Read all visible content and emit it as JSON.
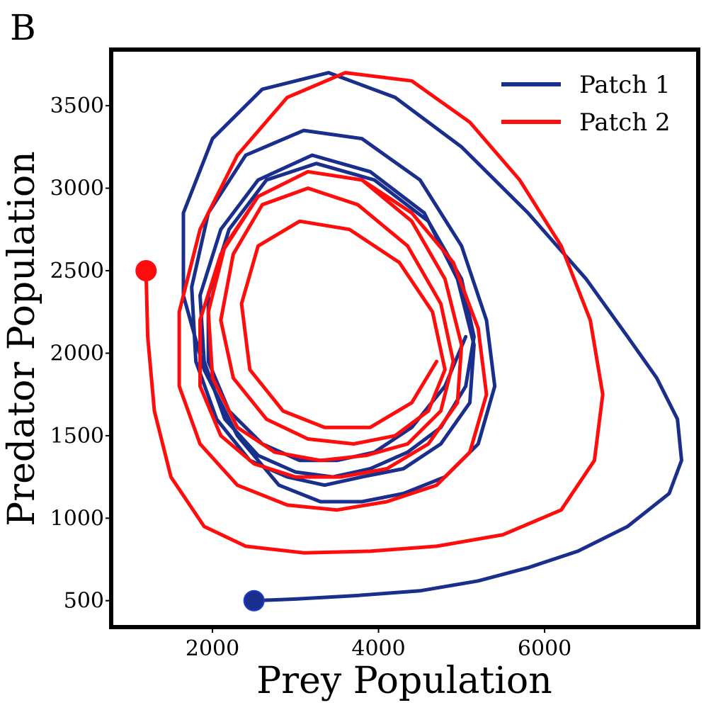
{
  "panel_label": "B",
  "colors": {
    "patch1": "#1a2e8c",
    "patch2": "#ff0d0d",
    "frame": "#000000"
  },
  "chart_data": {
    "type": "line",
    "title": "",
    "xlabel": "Prey Population",
    "ylabel": "Predator Population",
    "xlim": [
      780,
      7850
    ],
    "ylim": [
      340,
      3840
    ],
    "xticks": [
      2000,
      4000,
      6000
    ],
    "yticks": [
      500,
      1000,
      1500,
      2000,
      2500,
      3000,
      3500
    ],
    "grid": false,
    "legend": {
      "position": "top-right",
      "entries": [
        "Patch 1",
        "Patch 2"
      ]
    },
    "series": [
      {
        "name": "Patch 1",
        "color": "#1a2e8c",
        "start": [
          2500,
          500
        ],
        "x": [
          2500,
          3000,
          3700,
          4500,
          5200,
          5800,
          6400,
          7000,
          7500,
          7650,
          7600,
          7350,
          7000,
          6500,
          5800,
          5000,
          4200,
          3400,
          2600,
          2000,
          1650,
          1650,
          1900,
          2300,
          2800,
          3300,
          3800,
          4300,
          4800,
          5200,
          5400,
          5300,
          5000,
          4500,
          3800,
          3100,
          2400,
          1950,
          1750,
          1800,
          2050,
          2450,
          2900,
          3350,
          3800,
          4300,
          4750,
          5100,
          5150,
          4950,
          4550,
          3900,
          3200,
          2550,
          2100,
          1850,
          1900,
          2150,
          2550,
          3000,
          3450,
          3900,
          4350,
          4750,
          5050,
          5150,
          5000,
          4600,
          3950,
          3250,
          2650,
          2200,
          1950,
          1950,
          2200,
          2600,
          3050,
          3500,
          3950,
          4400,
          4800,
          5050
        ],
        "y": [
          500,
          510,
          530,
          560,
          620,
          700,
          800,
          950,
          1150,
          1350,
          1600,
          1850,
          2100,
          2450,
          2850,
          3250,
          3550,
          3700,
          3600,
          3300,
          2850,
          2350,
          1900,
          1500,
          1200,
          1100,
          1100,
          1150,
          1250,
          1450,
          1800,
          2200,
          2650,
          3050,
          3300,
          3350,
          3200,
          2850,
          2400,
          1950,
          1600,
          1350,
          1250,
          1200,
          1250,
          1300,
          1450,
          1700,
          2050,
          2450,
          2850,
          3100,
          3200,
          3050,
          2750,
          2350,
          1950,
          1600,
          1380,
          1280,
          1250,
          1300,
          1400,
          1550,
          1800,
          2100,
          2450,
          2800,
          3050,
          3150,
          3050,
          2750,
          2350,
          1950,
          1650,
          1450,
          1350,
          1350,
          1400,
          1550,
          1800,
          2100
        ]
      },
      {
        "name": "Patch 2",
        "color": "#ff0d0d",
        "start": [
          1200,
          2500
        ],
        "x": [
          1200,
          1220,
          1300,
          1500,
          1900,
          2400,
          3100,
          3900,
          4700,
          5500,
          6200,
          6600,
          6700,
          6550,
          6200,
          5700,
          5100,
          4400,
          3600,
          2900,
          2300,
          1850,
          1600,
          1600,
          1850,
          2300,
          2900,
          3500,
          4100,
          4700,
          5100,
          5300,
          5200,
          4900,
          4400,
          3800,
          3150,
          2550,
          2100,
          1850,
          1850,
          2100,
          2500,
          3000,
          3550,
          4100,
          4600,
          4950,
          5000,
          4800,
          4400,
          3800,
          3150,
          2550,
          2150,
          1950,
          2000,
          2300,
          2750,
          3300,
          3850,
          4350,
          4750,
          4900,
          4750,
          4350,
          3750,
          3150,
          2600,
          2250,
          2100,
          2250,
          2650,
          3150,
          3700,
          4200,
          4600,
          4800,
          4650,
          4250,
          3650,
          3050,
          2550,
          2350,
          2450,
          2850,
          3350,
          3900,
          4400,
          4700
        ],
        "y": [
          2500,
          2100,
          1650,
          1250,
          950,
          830,
          790,
          800,
          830,
          900,
          1050,
          1350,
          1750,
          2200,
          2650,
          3050,
          3400,
          3650,
          3700,
          3550,
          3200,
          2750,
          2250,
          1800,
          1450,
          1200,
          1080,
          1050,
          1100,
          1200,
          1400,
          1750,
          2150,
          2550,
          2850,
          3050,
          3100,
          2950,
          2600,
          2200,
          1800,
          1500,
          1330,
          1250,
          1250,
          1300,
          1450,
          1700,
          2050,
          2450,
          2800,
          3050,
          3100,
          2950,
          2650,
          2250,
          1850,
          1550,
          1400,
          1350,
          1380,
          1450,
          1650,
          1950,
          2300,
          2650,
          2900,
          3000,
          2900,
          2600,
          2200,
          1850,
          1600,
          1480,
          1450,
          1500,
          1650,
          1900,
          2250,
          2550,
          2750,
          2800,
          2650,
          2300,
          1900,
          1650,
          1550,
          1550,
          1700,
          1950
        ]
      }
    ]
  }
}
